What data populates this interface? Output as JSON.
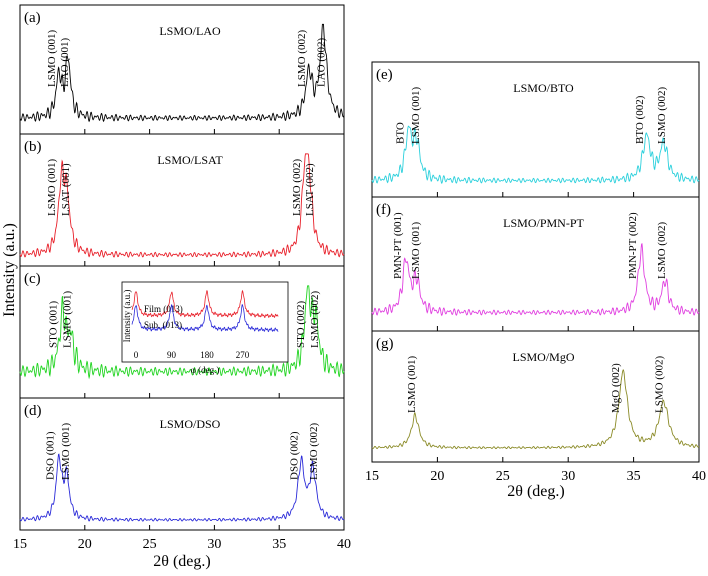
{
  "figure": {
    "ylabel": "Intensity (a.u.)",
    "xlabel_left": "2θ (deg.)",
    "xlabel_right": "2θ (deg.)"
  },
  "chart_data": [
    {
      "type": "line",
      "panel": "(a)",
      "title": "LSMO/LAO",
      "color": "#000000",
      "xlim": [
        15,
        40
      ],
      "peaks": [
        {
          "x": 18.0,
          "h": 0.42,
          "w": 0.25
        },
        {
          "x": 18.7,
          "h": 0.58,
          "w": 0.25
        },
        {
          "x": 37.3,
          "h": 0.45,
          "w": 0.3
        },
        {
          "x": 38.4,
          "h": 0.9,
          "w": 0.3
        }
      ],
      "base": 0.1,
      "osc": 0.06,
      "labels": [
        {
          "text": "LSMO (001)",
          "x": 17.7
        },
        {
          "text": "LAO (001)",
          "x": 18.7
        },
        {
          "text": "LSMO (002)",
          "x": 37.0
        },
        {
          "text": "LAO (002)",
          "x": 38.5
        }
      ]
    },
    {
      "type": "line",
      "panel": "(b)",
      "title": "LSMO/LSAT",
      "color": "#e8202a",
      "xlim": [
        15,
        40
      ],
      "peaks": [
        {
          "x": 18.2,
          "h": 0.65,
          "w": 0.28
        },
        {
          "x": 18.6,
          "h": 0.5,
          "w": 0.3
        },
        {
          "x": 37.0,
          "h": 0.7,
          "w": 0.3
        },
        {
          "x": 37.3,
          "h": 0.55,
          "w": 0.3
        }
      ],
      "base": 0.05,
      "osc": 0.05,
      "labels": [
        {
          "text": "LSMO (001)",
          "x": 17.7
        },
        {
          "text": "LSAT (001)",
          "x": 18.8
        },
        {
          "text": "LSMO (002)",
          "x": 36.6
        },
        {
          "text": "LSAT (002)",
          "x": 37.6
        }
      ]
    },
    {
      "type": "line",
      "panel": "(c)",
      "title": "LSMO/STO",
      "color": "#21d421",
      "xlim": [
        15,
        40
      ],
      "peaks": [
        {
          "x": 18.3,
          "h": 0.55,
          "w": 0.3
        },
        {
          "x": 18.9,
          "h": 0.3,
          "w": 0.3
        },
        {
          "x": 37.2,
          "h": 0.75,
          "w": 0.3
        },
        {
          "x": 37.8,
          "h": 0.45,
          "w": 0.3
        }
      ],
      "base": 0.2,
      "osc": 0.09,
      "labels": [
        {
          "text": "STO (001)",
          "x": 17.8
        },
        {
          "text": "LSMO (001)",
          "x": 18.9
        },
        {
          "text": "STO (002)",
          "x": 36.9
        },
        {
          "text": "LSMO (002)",
          "x": 38.0
        }
      ],
      "inset": {
        "xlabel": "φ (deg.)",
        "ylabel": "Intensity (a.u.)",
        "xticks": [
          0,
          90,
          180,
          270
        ],
        "peaks_phi": [
          0,
          90,
          180,
          270
        ],
        "series": [
          {
            "name": "Film (013)",
            "color": "#e8202a"
          },
          {
            "name": "Sub. (013)",
            "color": "#2a2ad8"
          }
        ]
      }
    },
    {
      "type": "line",
      "panel": "(d)",
      "title": "LSMO/DSO",
      "color": "#2a2ad8",
      "xlim": [
        15,
        40
      ],
      "peaks": [
        {
          "x": 18.0,
          "h": 0.58,
          "w": 0.25
        },
        {
          "x": 18.6,
          "h": 0.4,
          "w": 0.25
        },
        {
          "x": 36.7,
          "h": 0.55,
          "w": 0.3
        },
        {
          "x": 37.6,
          "h": 0.48,
          "w": 0.3
        }
      ],
      "base": 0.04,
      "osc": 0.03,
      "labels": [
        {
          "text": "DSO (001)",
          "x": 17.6
        },
        {
          "text": "LSMO (001)",
          "x": 18.8
        },
        {
          "text": "DSO (002)",
          "x": 36.4
        },
        {
          "text": "LSMO (002)",
          "x": 37.9
        }
      ]
    },
    {
      "type": "line",
      "panel": "(e)",
      "title": "LSMO/BTO",
      "color": "#2bd0dc",
      "xlim": [
        15,
        40
      ],
      "peaks": [
        {
          "x": 17.8,
          "h": 0.45,
          "w": 0.3
        },
        {
          "x": 18.4,
          "h": 0.35,
          "w": 0.3
        },
        {
          "x": 36.0,
          "h": 0.42,
          "w": 0.35
        },
        {
          "x": 37.3,
          "h": 0.35,
          "w": 0.35
        }
      ],
      "base": 0.1,
      "osc": 0.05,
      "labels": [
        {
          "text": "BTO",
          "x": 17.4
        },
        {
          "text": "LSMO (001)",
          "x": 18.6
        },
        {
          "text": "BTO (002)",
          "x": 35.7
        },
        {
          "text": "LSMO (002)",
          "x": 37.4
        }
      ]
    },
    {
      "type": "line",
      "panel": "(f)",
      "title": "LSMO/PMN-PT",
      "color": "#e040e0",
      "xlim": [
        15,
        40
      ],
      "peaks": [
        {
          "x": 17.6,
          "h": 0.5,
          "w": 0.3
        },
        {
          "x": 18.4,
          "h": 0.3,
          "w": 0.3
        },
        {
          "x": 35.6,
          "h": 0.6,
          "w": 0.3
        },
        {
          "x": 37.4,
          "h": 0.3,
          "w": 0.3
        }
      ],
      "base": 0.12,
      "osc": 0.05,
      "labels": [
        {
          "text": "PMN-PT (001)",
          "x": 17.2
        },
        {
          "text": "LSMO (001)",
          "x": 18.6
        },
        {
          "text": "PMN-PT (002)",
          "x": 35.2
        },
        {
          "text": "LSMO (002)",
          "x": 37.4
        }
      ]
    },
    {
      "type": "line",
      "panel": "(g)",
      "title": "LSMO/MgO",
      "color": "#8a8a26",
      "xlim": [
        15,
        40
      ],
      "peaks": [
        {
          "x": 18.3,
          "h": 0.32,
          "w": 0.35
        },
        {
          "x": 34.2,
          "h": 0.75,
          "w": 0.4
        },
        {
          "x": 37.3,
          "h": 0.45,
          "w": 0.45
        }
      ],
      "base": 0.08,
      "osc": 0.03,
      "labels": [
        {
          "text": "LSMO (001)",
          "x": 18.3
        },
        {
          "text": "MgO (002)",
          "x": 33.9
        },
        {
          "text": "LSMO (002)",
          "x": 37.2
        }
      ]
    }
  ],
  "xticks": [
    15,
    20,
    25,
    30,
    35,
    40
  ]
}
